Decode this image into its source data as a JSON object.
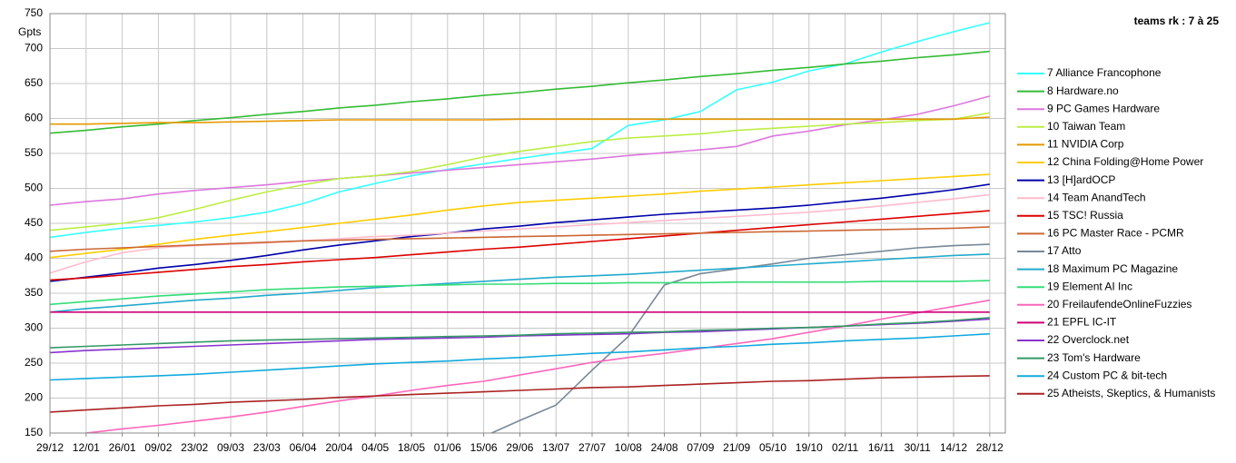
{
  "chart_data": {
    "type": "line",
    "title": "teams rk : 7 à 25",
    "y_label": "Gpts",
    "categories": [
      "29/12",
      "12/01",
      "26/01",
      "09/02",
      "23/02",
      "09/03",
      "23/03",
      "06/04",
      "20/04",
      "04/05",
      "18/05",
      "01/06",
      "15/06",
      "29/06",
      "13/07",
      "27/07",
      "10/08",
      "24/08",
      "07/09",
      "21/09",
      "05/10",
      "19/10",
      "02/11",
      "16/11",
      "30/11",
      "14/12",
      "28/12"
    ],
    "ylim": [
      150,
      750
    ],
    "yticks": [
      150,
      200,
      250,
      300,
      350,
      400,
      450,
      500,
      550,
      600,
      650,
      700,
      750
    ],
    "grid": true,
    "series": [
      {
        "name": "7 Alliance Francophone",
        "color": "#33ffff",
        "values": [
          430,
          437,
          443,
          447,
          452,
          458,
          466,
          478,
          495,
          507,
          518,
          527,
          535,
          543,
          550,
          557,
          590,
          598,
          610,
          641,
          652,
          668,
          678,
          695,
          710,
          724,
          737
        ]
      },
      {
        "name": "8 Hardware.no",
        "color": "#33bb33",
        "values": [
          579,
          583,
          588,
          592,
          597,
          601,
          606,
          610,
          615,
          619,
          624,
          628,
          633,
          637,
          642,
          646,
          651,
          655,
          660,
          664,
          669,
          673,
          678,
          682,
          687,
          691,
          696
        ]
      },
      {
        "name": "9 PC Games Hardware",
        "color": "#dd77dd",
        "values": [
          476,
          481,
          485,
          492,
          497,
          501,
          505,
          510,
          514,
          518,
          522,
          526,
          530,
          534,
          538,
          542,
          547,
          551,
          555,
          560,
          575,
          582,
          591,
          598,
          606,
          618,
          632
        ]
      },
      {
        "name": "10 Taiwan Team",
        "color": "#bbee44",
        "values": [
          440,
          445,
          450,
          458,
          470,
          483,
          495,
          505,
          514,
          518,
          524,
          534,
          545,
          553,
          560,
          567,
          572,
          575,
          578,
          583,
          586,
          589,
          592,
          594,
          597,
          599,
          608
        ]
      },
      {
        "name": "11 NVIDIA Corp",
        "color": "#e69900",
        "values": [
          592,
          592,
          593,
          594,
          594,
          595,
          596,
          597,
          598,
          598,
          598,
          598,
          598,
          599,
          599,
          599,
          599,
          599,
          599,
          599,
          599,
          599,
          599,
          599,
          599,
          599,
          602
        ]
      },
      {
        "name": "12 China Folding@Home Power",
        "color": "#ffcc00",
        "values": [
          401,
          407,
          413,
          420,
          427,
          433,
          438,
          444,
          450,
          456,
          462,
          469,
          475,
          480,
          483,
          486,
          489,
          492,
          496,
          499,
          502,
          505,
          508,
          511,
          514,
          517,
          520
        ]
      },
      {
        "name": "13 [H]ardOCP",
        "color": "#0000aa",
        "values": [
          367,
          373,
          379,
          386,
          391,
          397,
          404,
          412,
          419,
          425,
          431,
          436,
          442,
          446,
          451,
          455,
          459,
          463,
          466,
          469,
          472,
          476,
          481,
          486,
          492,
          498,
          506
        ]
      },
      {
        "name": "14 Team AnandTech",
        "color": "#ffbbcc",
        "values": [
          379,
          395,
          408,
          415,
          418,
          420,
          422,
          425,
          428,
          431,
          433,
          436,
          439,
          442,
          445,
          448,
          451,
          454,
          457,
          460,
          463,
          466,
          470,
          475,
          480,
          485,
          491
        ]
      },
      {
        "name": "15 TSC! Russia",
        "color": "#dd0000",
        "values": [
          369,
          372,
          376,
          380,
          384,
          388,
          391,
          395,
          398,
          401,
          405,
          409,
          413,
          416,
          420,
          424,
          428,
          432,
          436,
          440,
          444,
          448,
          452,
          456,
          460,
          464,
          468
        ]
      },
      {
        "name": "16 PC Master Race - PCMR",
        "color": "#cc6633",
        "values": [
          410,
          413,
          415,
          417,
          419,
          421,
          423,
          425,
          426,
          427,
          428,
          429,
          430,
          431,
          432,
          433,
          434,
          435,
          436,
          437,
          438,
          439,
          440,
          441,
          442,
          443,
          445
        ]
      },
      {
        "name": "17 Atto",
        "color": "#778899",
        "values": [
          null,
          null,
          null,
          null,
          null,
          null,
          null,
          null,
          null,
          null,
          null,
          null,
          145,
          168,
          190,
          240,
          288,
          362,
          378,
          385,
          392,
          400,
          405,
          410,
          415,
          418,
          420
        ]
      },
      {
        "name": "18 Maximum PC Magazine",
        "color": "#22aacc",
        "values": [
          323,
          328,
          332,
          336,
          340,
          343,
          347,
          350,
          354,
          358,
          361,
          364,
          367,
          370,
          373,
          375,
          377,
          380,
          383,
          386,
          389,
          392,
          395,
          398,
          401,
          404,
          406
        ]
      },
      {
        "name": "19 Element AI Inc",
        "color": "#33dd77",
        "values": [
          334,
          338,
          342,
          346,
          349,
          352,
          355,
          357,
          359,
          360,
          361,
          362,
          363,
          363,
          364,
          364,
          365,
          365,
          365,
          366,
          366,
          366,
          366,
          367,
          367,
          367,
          368
        ]
      },
      {
        "name": "20 FreilaufendeOnlineFuzzies",
        "color": "#ff66bb",
        "values": [
          null,
          150,
          156,
          161,
          167,
          173,
          180,
          188,
          196,
          203,
          211,
          218,
          224,
          233,
          242,
          251,
          258,
          264,
          271,
          278,
          285,
          294,
          303,
          313,
          322,
          331,
          340
        ]
      },
      {
        "name": "21 EPFL IC-IT",
        "color": "#cc0077",
        "values": [
          323,
          323,
          323,
          323,
          323,
          323,
          323,
          323,
          323,
          323,
          323,
          323,
          323,
          323,
          323,
          323,
          323,
          323,
          323,
          323,
          323,
          323,
          323,
          323,
          323,
          323,
          323
        ]
      },
      {
        "name": "22 Overclock.net",
        "color": "#8833cc",
        "values": [
          265,
          268,
          270,
          272,
          274,
          276,
          278,
          280,
          282,
          284,
          285,
          286,
          287,
          289,
          290,
          291,
          292,
          294,
          295,
          297,
          299,
          301,
          303,
          305,
          307,
          310,
          313
        ]
      },
      {
        "name": "23 Tom's Hardware",
        "color": "#339966",
        "values": [
          272,
          274,
          276,
          278,
          280,
          282,
          283,
          284,
          285,
          286,
          287,
          288,
          289,
          290,
          292,
          293,
          294,
          295,
          297,
          298,
          300,
          301,
          303,
          306,
          308,
          311,
          315
        ]
      },
      {
        "name": "24 Custom PC & bit-tech",
        "color": "#11aadd",
        "values": [
          226,
          228,
          230,
          232,
          234,
          237,
          240,
          243,
          246,
          249,
          251,
          253,
          256,
          258,
          261,
          264,
          266,
          269,
          272,
          274,
          277,
          279,
          282,
          284,
          286,
          289,
          292
        ]
      },
      {
        "name": "25 Atheists, Skeptics, & Humanists",
        "color": "#aa2222",
        "values": [
          180,
          183,
          186,
          189,
          191,
          194,
          196,
          198,
          201,
          203,
          205,
          207,
          209,
          211,
          213,
          215,
          216,
          218,
          220,
          222,
          224,
          225,
          227,
          229,
          230,
          231,
          232
        ]
      }
    ]
  }
}
